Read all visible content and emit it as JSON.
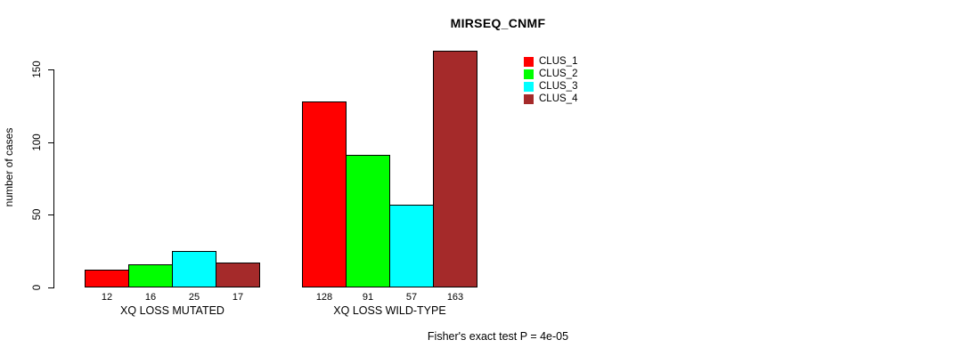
{
  "chart_data": {
    "type": "bar",
    "title": "MIRSEQ_CNMF",
    "ylabel": "number of cases",
    "xlabel": "",
    "ylim": [
      0,
      150
    ],
    "yticks": [
      0,
      50,
      100,
      150
    ],
    "grid": false,
    "legend_position": "top-right",
    "categories": [
      "XQ LOSS MUTATED",
      "XQ LOSS WILD-TYPE"
    ],
    "series": [
      {
        "name": "CLUS_1",
        "color": "#FF0000",
        "values": [
          12,
          128
        ]
      },
      {
        "name": "CLUS_2",
        "color": "#00FF00",
        "values": [
          16,
          91
        ]
      },
      {
        "name": "CLUS_3",
        "color": "#00FFFF",
        "values": [
          25,
          57
        ]
      },
      {
        "name": "CLUS_4",
        "color": "#A52A2A",
        "values": [
          17,
          163
        ]
      }
    ],
    "bar_value_labels": true,
    "annotation": "Fisher's exact test P = 4e-05"
  },
  "colors": {
    "axis": "#000000",
    "bar_border": "#000000",
    "background": "#FFFFFF",
    "text": "#000000"
  }
}
